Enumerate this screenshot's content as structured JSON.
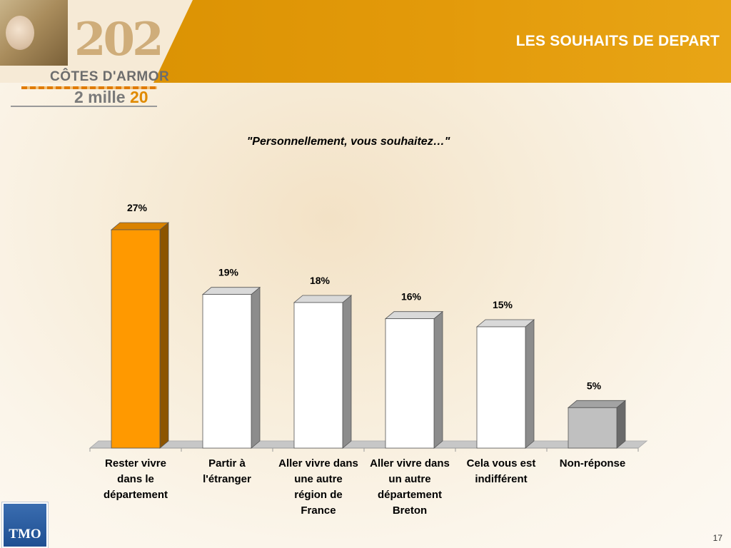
{
  "header": {
    "title": "LES SOUHAITS DE DEPART",
    "band_color": "#dd9300"
  },
  "logo": {
    "year_text": "202",
    "region_text": "CÔTES D'ARMOR",
    "tagline_prefix": "2 mille ",
    "tagline_number": "20"
  },
  "subtitle": "\"Personnellement, vous souhaitez…\"",
  "chart_data": {
    "type": "bar",
    "title": "\"Personnellement, vous souhaitez…\"",
    "categories": [
      "Rester vivre dans le département",
      "Partir à l'étranger",
      "Aller vivre dans une autre région de France",
      "Aller vivre dans un autre département Breton",
      "Cela vous est indifférent",
      "Non-réponse"
    ],
    "category_lines": [
      "Rester vivre\ndans le\ndépartement",
      "Partir à\nl'étranger",
      "Aller vivre dans\nune autre\nrégion de\nFrance",
      "Aller vivre dans\nun autre\ndépartement\nBreton",
      "Cela vous est\nindifférent",
      "Non-réponse"
    ],
    "values": [
      27,
      19,
      18,
      16,
      15,
      5
    ],
    "value_labels": [
      "27%",
      "19%",
      "18%",
      "16%",
      "15%",
      "5%"
    ],
    "unit": "%",
    "ylim": [
      0,
      27
    ],
    "grid": false,
    "legend": "none",
    "bar_colors": [
      "#ff9900",
      "#ffffff",
      "#ffffff",
      "#ffffff",
      "#ffffff",
      "#c0c0c0"
    ]
  },
  "footer": {
    "brand": "TMO",
    "page_number": "17"
  }
}
